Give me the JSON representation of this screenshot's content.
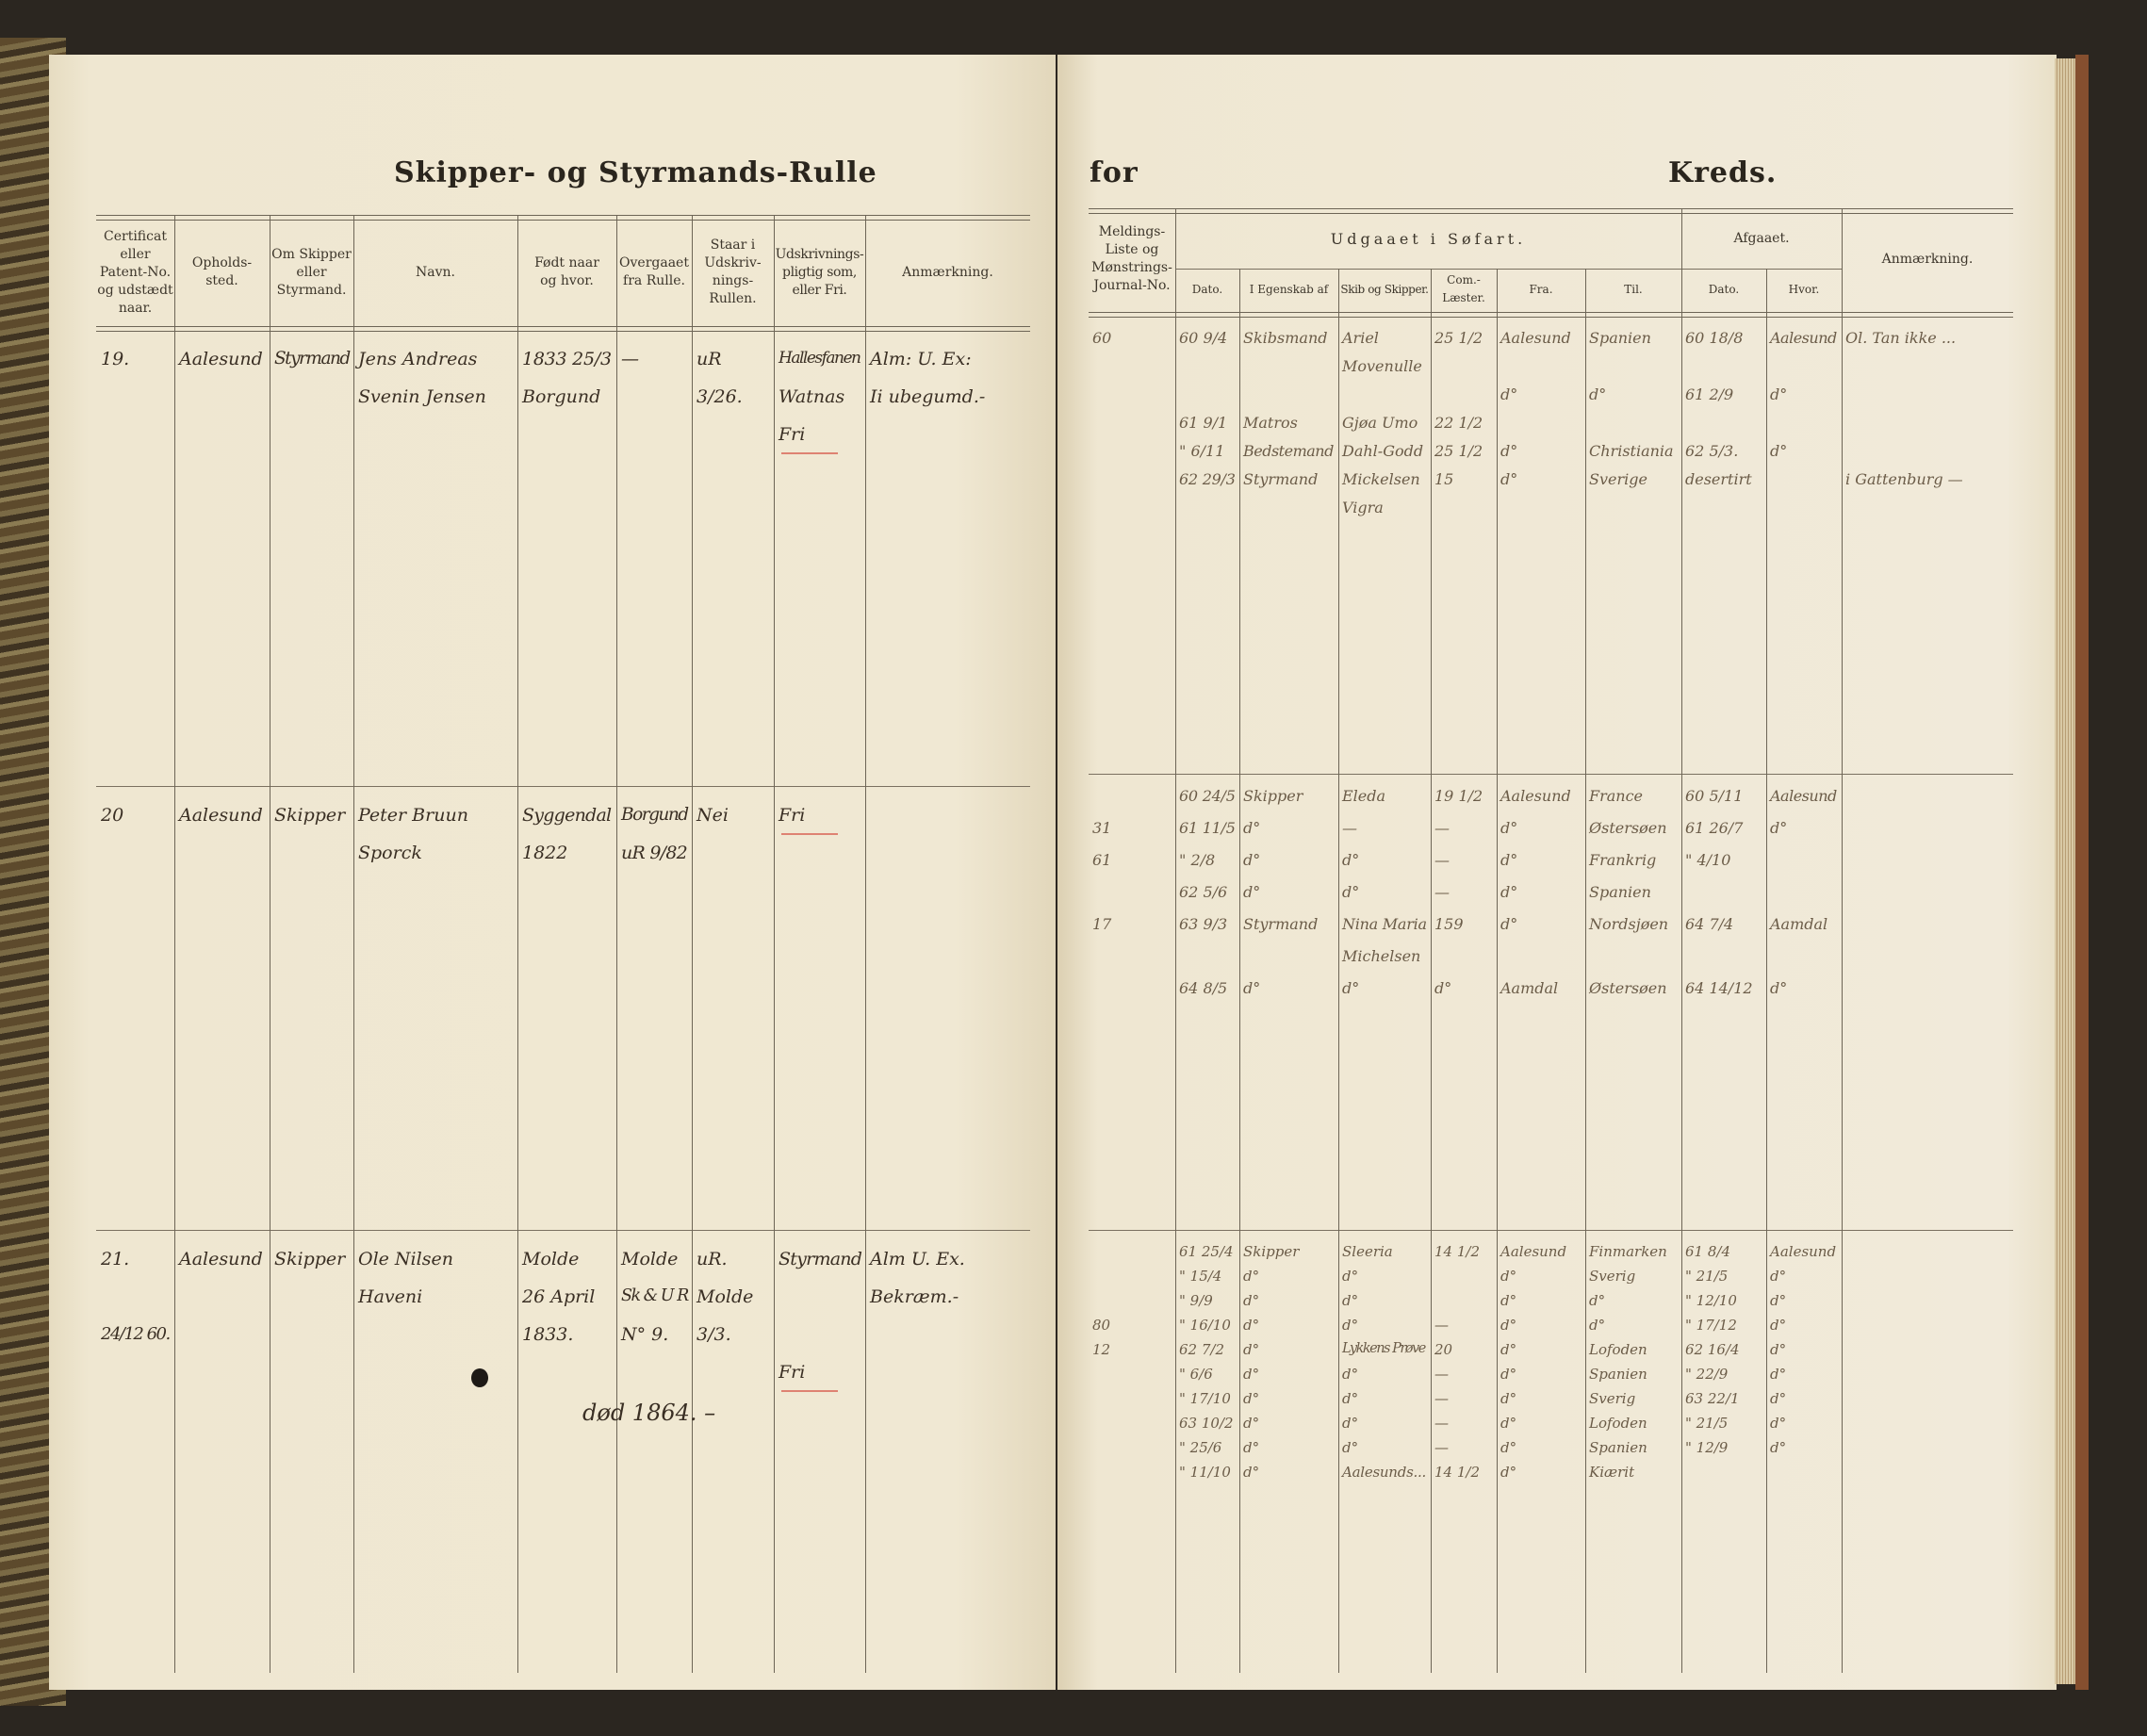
{
  "left_page": {
    "title": "Skipper- og Styrmands-Rulle",
    "headers": [
      "Certificat\neller\nPatent-No.\nog udstædt\nnaar.",
      "Opholds-\nsted.",
      "Om Skipper\neller\nStyrmand.",
      "Navn.",
      "Født naar\nog hvor.",
      "Overgaaet\nfra Rulle.",
      "Staar i\nUdskriv-\nnings-\nRullen.",
      "Udskrivnings-\npligtig som,\neller Fri.",
      "Anmærkning."
    ],
    "entries": [
      {
        "cells": [
          [
            "19."
          ],
          [
            "Aalesund"
          ],
          [
            "Styrmand"
          ],
          [
            "Jens Andreas",
            "Svenin Jensen"
          ],
          [
            "1833 25/3",
            "Borgund"
          ],
          [
            "—"
          ],
          [
            "uR",
            "3/26."
          ],
          [
            "Hallesfanen",
            "Watnas",
            "Fri"
          ],
          [
            "Alm: U. Ex:",
            "Ii ubegumd.-"
          ]
        ]
      },
      {
        "cells": [
          [
            "20"
          ],
          [
            "Aalesund"
          ],
          [
            "Skipper"
          ],
          [
            "Peter Bruun",
            "Sporck"
          ],
          [
            "Syggendal",
            "1822"
          ],
          [
            "Borgund",
            "uR 9/82"
          ],
          [
            "Nei"
          ],
          [
            "Fri"
          ],
          [
            ""
          ]
        ]
      },
      {
        "cells": [
          [
            "21.",
            "",
            "24/12 60."
          ],
          [
            "Aalesund"
          ],
          [
            "Skipper"
          ],
          [
            "Ole Nilsen",
            "Haveni"
          ],
          [
            "Molde",
            "26 April",
            "1833."
          ],
          [
            "Molde",
            "Sk & U R",
            "N° 9."
          ],
          [
            "uR.",
            "Molde",
            "3/3."
          ],
          [
            "Styrmand",
            "",
            "",
            "Fri"
          ],
          [
            "Alm U. Ex.",
            "Bekræm.-"
          ]
        ],
        "note": "død 1864. –"
      }
    ]
  },
  "right_page": {
    "title_left": "for",
    "title_right": "Kreds.",
    "group_headers": {
      "udgaaet": "Udgaaet i Søfart.",
      "afgaaet": "Afgaaet."
    },
    "headers": [
      "Meldings-\nListe og\nMønstrings-\nJournal-No.",
      "Dato.",
      "I Egenskab af",
      "Skib og Skipper.",
      "Com.-\nLæster.",
      "Fra.",
      "Til.",
      "Dato.",
      "Hvor.",
      "Anmærkning."
    ],
    "entries": [
      {
        "rows": [
          [
            "60",
            "60 9/4",
            "Skibsmand",
            "Ariel",
            "25 1/2",
            "Aalesund",
            "Spanien",
            "60 18/8",
            "Aalesund",
            "Ol. Tan ikke ..."
          ],
          [
            "",
            "",
            "",
            "Movenulle",
            "",
            "",
            "",
            "",
            "",
            ""
          ],
          [
            "",
            "",
            "",
            "",
            "",
            "d°",
            "d°",
            "61 2/9",
            "d°",
            ""
          ],
          [
            "",
            "61 9/1",
            "Matros",
            "Gjøa Umo",
            "22 1/2",
            "",
            "",
            "",
            "",
            ""
          ],
          [
            "",
            "\" 6/11",
            "Bedstemand",
            "Dahl-Godd",
            "25 1/2",
            "d°",
            "Christiania",
            "62 5/3.",
            "d°",
            ""
          ],
          [
            "",
            "62 29/3",
            "Styrmand",
            "Mickelsen",
            "15",
            "d°",
            "Sverige",
            "desertirt",
            "",
            "i Gattenburg —"
          ],
          [
            "",
            "",
            "",
            "Vigra",
            "",
            "",
            "",
            "",
            "",
            ""
          ]
        ]
      },
      {
        "rows": [
          [
            "",
            "60 24/5",
            "Skipper",
            "Eleda",
            "19 1/2",
            "Aalesund",
            "France",
            "60 5/11",
            "Aalesund",
            ""
          ],
          [
            "31",
            "61 11/5",
            "d°",
            "—",
            "—",
            "d°",
            "Østersøen",
            "61 26/7",
            "d°",
            ""
          ],
          [
            "61",
            "\" 2/8",
            "d°",
            "d°",
            "—",
            "d°",
            "Frankrig",
            "\" 4/10",
            "",
            ""
          ],
          [
            "",
            "62 5/6",
            "d°",
            "d°",
            "—",
            "d°",
            "Spanien",
            "",
            "",
            ""
          ],
          [
            "17",
            "63 9/3",
            "Styrmand",
            "Nina Maria",
            "159",
            "d°",
            "Nordsjøen",
            "64 7/4",
            "Aamdal",
            ""
          ],
          [
            "",
            "",
            "",
            "Michelsen",
            "",
            "",
            "",
            "",
            "",
            ""
          ],
          [
            "",
            "64 8/5",
            "d°",
            "d°",
            "d°",
            "Aamdal",
            "Østersøen",
            "64 14/12",
            "d°",
            ""
          ]
        ]
      },
      {
        "rows": [
          [
            "",
            "61 25/4",
            "Skipper",
            "Sleeria",
            "14 1/2",
            "Aalesund",
            "Finmarken",
            "61 8/4",
            "Aalesund",
            ""
          ],
          [
            "",
            "\" 15/4",
            "d°",
            "d°",
            "",
            "d°",
            "Sverig",
            "\" 21/5",
            "d°",
            ""
          ],
          [
            "",
            "\" 9/9",
            "d°",
            "d°",
            "",
            "d°",
            "d°",
            "\" 12/10",
            "d°",
            ""
          ],
          [
            "80",
            "\" 16/10",
            "d°",
            "d°",
            "—",
            "d°",
            "d°",
            "\" 17/12",
            "d°",
            ""
          ],
          [
            "12",
            "62 7/2",
            "d°",
            "Lykkens Prøve",
            "20",
            "d°",
            "Lofoden",
            "62 16/4",
            "d°",
            ""
          ],
          [
            "",
            "\" 6/6",
            "d°",
            "d°",
            "—",
            "d°",
            "Spanien",
            "\" 22/9",
            "d°",
            ""
          ],
          [
            "",
            "\" 17/10",
            "d°",
            "d°",
            "—",
            "d°",
            "Sverig",
            "63 22/1",
            "d°",
            ""
          ],
          [
            "",
            "63 10/2",
            "d°",
            "d°",
            "—",
            "d°",
            "Lofoden",
            "\" 21/5",
            "d°",
            ""
          ],
          [
            "",
            "\" 25/6",
            "d°",
            "d°",
            "—",
            "d°",
            "Spanien",
            "\" 12/9",
            "d°",
            ""
          ],
          [
            "",
            "\" 11/10",
            "d°",
            "Aalesunds...",
            "14 1/2",
            "d°",
            "Kiærit",
            "",
            "",
            ""
          ]
        ]
      }
    ]
  },
  "colors": {
    "paper": "#f0e8d3",
    "ink": "#3a2f24",
    "rule": "#6d6556",
    "red_underline": "#d9685a",
    "background": "#2b2620"
  }
}
